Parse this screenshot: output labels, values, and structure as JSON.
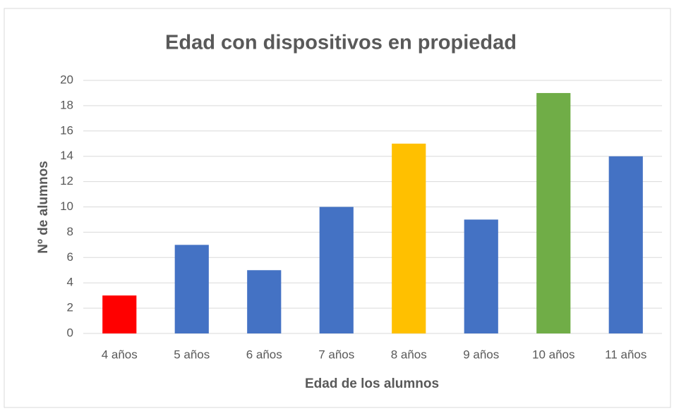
{
  "chart_data": {
    "type": "bar",
    "title": "Edad con dispositivos en propiedad",
    "x_label": "Edad de los alumnos",
    "y_label": "Nº de alumnos",
    "categories": [
      "4 años",
      "5 años",
      "6 años",
      "7 años",
      "8 años",
      "9 años",
      "10 años",
      "11 años"
    ],
    "values": [
      3,
      7,
      5,
      10,
      15,
      9,
      19,
      14
    ],
    "colors": [
      "#ff0000",
      "#4472c4",
      "#4472c4",
      "#4472c4",
      "#ffc000",
      "#4472c4",
      "#70ad47",
      "#4472c4"
    ],
    "ylim": [
      0,
      20
    ],
    "yticks": [
      0,
      2,
      4,
      6,
      8,
      10,
      12,
      14,
      16,
      18,
      20
    ],
    "grid": true
  }
}
